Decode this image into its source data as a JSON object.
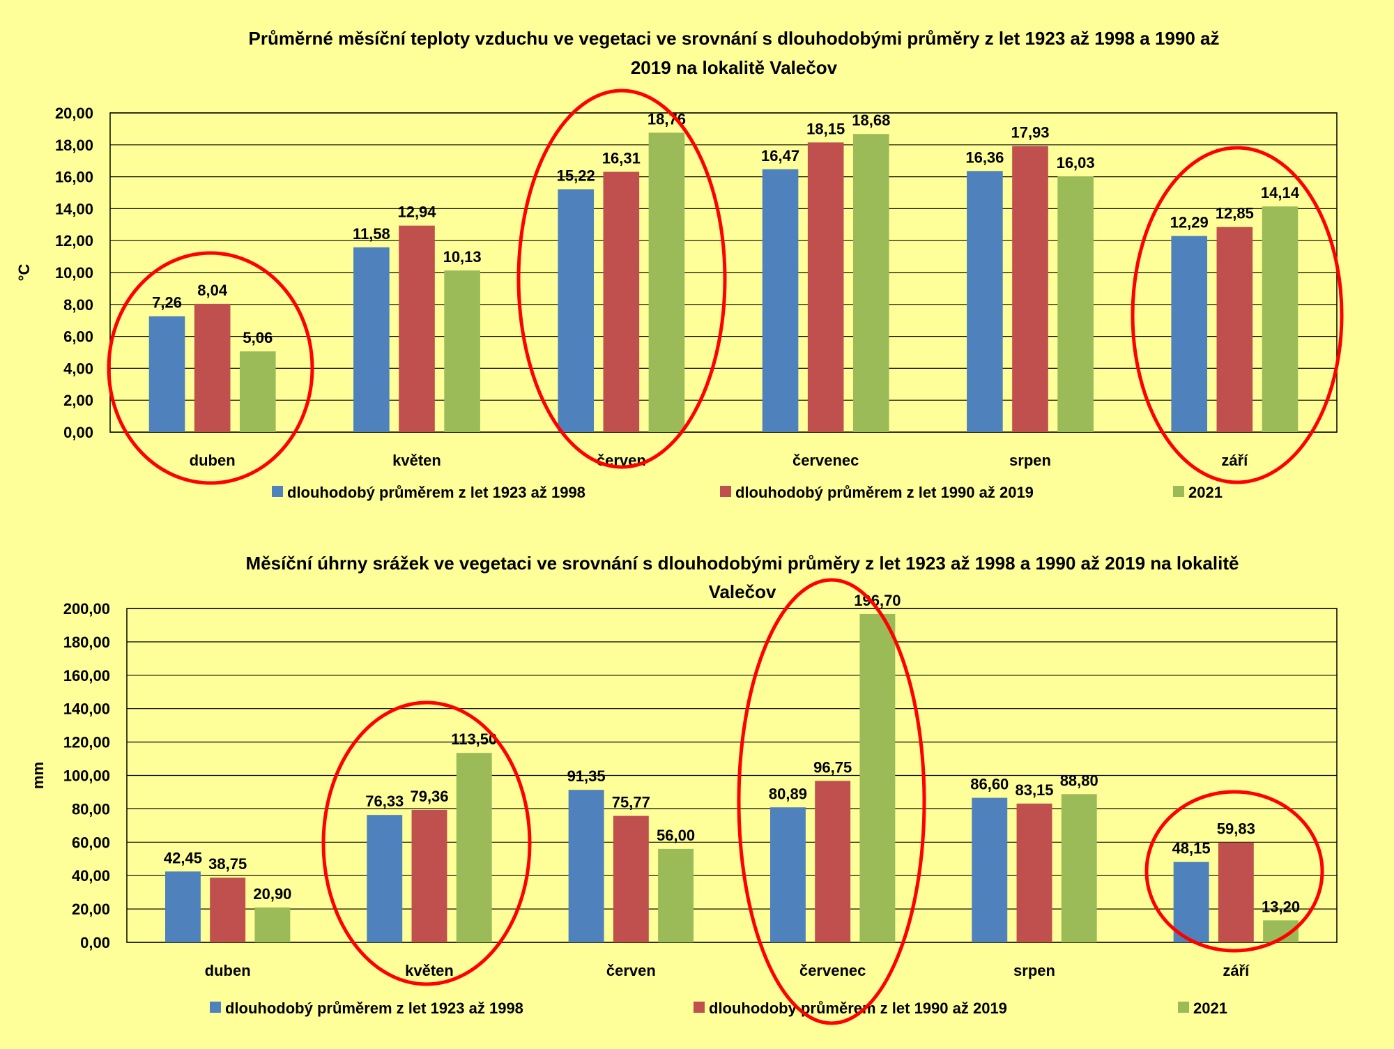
{
  "chart_data": [
    {
      "type": "bar",
      "title": "Průměrné měsíční teploty vzduchu ve vegetaci ve srovnání s dlouhodobými průměry z let 1923 až 1998 a 1990 až 2019 na lokalitě Valečov",
      "title_lines": [
        "Průměrné měsíční teploty vzduchu ve vegetaci ve srovnání s dlouhodobými průměry z let 1923 až 1998 a 1990 až",
        "2019 na lokalitě Valečov"
      ],
      "ylabel": "°C",
      "ylim": [
        0,
        20
      ],
      "ytick_step": 2,
      "ytick_labels": [
        "0,00",
        "2,00",
        "4,00",
        "6,00",
        "8,00",
        "10,00",
        "12,00",
        "14,00",
        "16,00",
        "18,00",
        "20,00"
      ],
      "grid": true,
      "legend": "bottom",
      "categories": [
        "duben",
        "květen",
        "červen",
        "červenec",
        "srpen",
        "září"
      ],
      "series": [
        {
          "name": "dlouhodobý průměrem z let 1923 až 1998",
          "color": "#4F81BD",
          "values": [
            7.26,
            11.58,
            15.22,
            16.47,
            16.36,
            12.29
          ],
          "labels": [
            "7,26",
            "11,58",
            "15,22",
            "16,47",
            "16,36",
            "12,29"
          ]
        },
        {
          "name": "dlouhodobý průměrem z let 1990 až 2019",
          "color": "#C0504D",
          "values": [
            8.04,
            12.94,
            16.31,
            18.15,
            17.93,
            12.85
          ],
          "labels": [
            "8,04",
            "12,94",
            "16,31",
            "18,15",
            "17,93",
            "12,85"
          ]
        },
        {
          "name": "2021",
          "color": "#9BBB59",
          "values": [
            5.06,
            10.13,
            18.76,
            18.68,
            16.03,
            14.14
          ],
          "labels": [
            "5,06",
            "10,13",
            "18,76",
            "18,68",
            "16,03",
            "14,14"
          ]
        }
      ],
      "highlighted_categories": [
        "duben",
        "červen",
        "září"
      ],
      "highlight_color": "#FF0000"
    },
    {
      "type": "bar",
      "title": "Měsíční úhrny srážek ve vegetaci ve srovnání s dlouhodobými průměry z let 1923 až 1998 a 1990 až 2019 na lokalitě Valečov",
      "title_lines": [
        "Měsíční úhrny srážek ve vegetaci ve srovnání s dlouhodobými průměry z let 1923 až 1998 a 1990 až 2019 na lokalitě",
        "Valečov"
      ],
      "ylabel": "mm",
      "ylim": [
        0,
        200
      ],
      "ytick_step": 20,
      "ytick_labels": [
        "0,00",
        "20,00",
        "40,00",
        "60,00",
        "80,00",
        "100,00",
        "120,00",
        "140,00",
        "160,00",
        "180,00",
        "200,00"
      ],
      "grid": true,
      "legend": "bottom",
      "categories": [
        "duben",
        "květen",
        "červen",
        "červenec",
        "srpen",
        "září"
      ],
      "series": [
        {
          "name": "dlouhodobý průměrem z let 1923 až 1998",
          "color": "#4F81BD",
          "values": [
            42.45,
            76.33,
            91.35,
            80.89,
            86.6,
            48.15
          ],
          "labels": [
            "42,45",
            "76,33",
            "91,35",
            "80,89",
            "86,60",
            "48,15"
          ]
        },
        {
          "name": "dlouhodobý průměrem z let 1990 až 2019",
          "color": "#C0504D",
          "values": [
            38.75,
            79.36,
            75.77,
            96.75,
            83.15,
            59.83
          ],
          "labels": [
            "38,75",
            "79,36",
            "75,77",
            "96,75",
            "83,15",
            "59,83"
          ]
        },
        {
          "name": "2021",
          "color": "#9BBB59",
          "values": [
            20.9,
            113.5,
            56.0,
            196.7,
            88.8,
            13.2
          ],
          "labels": [
            "20,90",
            "113,50",
            "56,00",
            "196,70",
            "88,80",
            "13,20"
          ]
        }
      ],
      "highlighted_categories": [
        "květen",
        "červenec",
        "září"
      ],
      "highlight_color": "#FF0000"
    }
  ]
}
